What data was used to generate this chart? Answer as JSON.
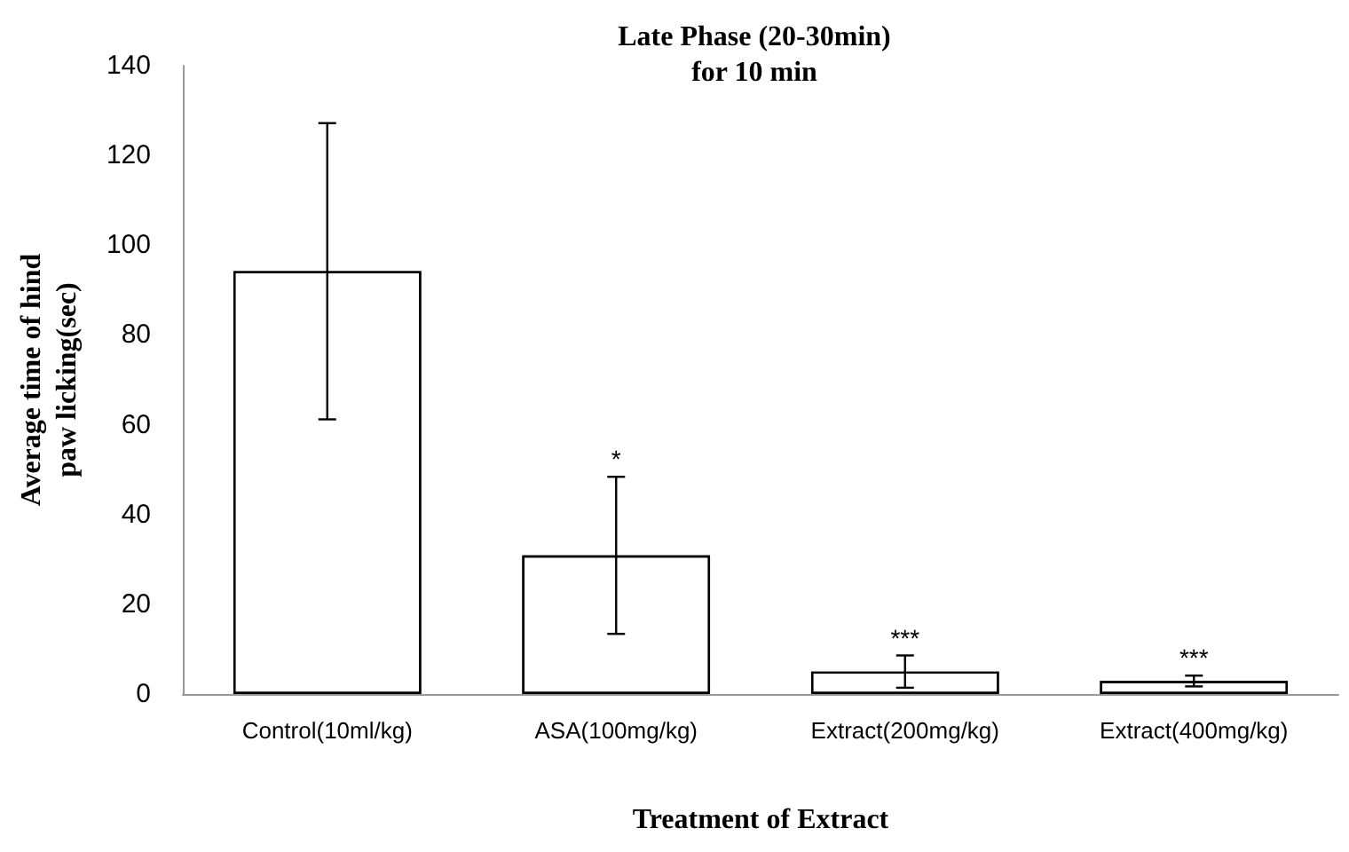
{
  "chart_data": {
    "type": "bar",
    "title": "Late Phase (20-30min)\nfor 10 min",
    "xlabel": "Treatment of Extract",
    "ylabel": "Average time of hind\npaw licking(sec)",
    "categories": [
      "Control(10ml/kg)",
      "ASA(100mg/kg)",
      "Extract(200mg/kg)",
      "Extract(400mg/kg)"
    ],
    "values": [
      94.2,
      30.9,
      5.0,
      2.9
    ],
    "errors": [
      33,
      17.5,
      3.6,
      1.2
    ],
    "color": "#ffffff",
    "ylim": [
      0,
      140
    ],
    "yticks": [
      0,
      20,
      40,
      60,
      80,
      100,
      120,
      140
    ],
    "grid": false,
    "annotations": [
      {
        "text": "*",
        "x": "ASA(100mg/kg)",
        "y": 48.4
      },
      {
        "text": "***",
        "x": "Extract(200mg/kg)",
        "y": 8.6
      },
      {
        "text": "***",
        "x": "Extract(400mg/kg)",
        "y": 4.1
      }
    ]
  }
}
